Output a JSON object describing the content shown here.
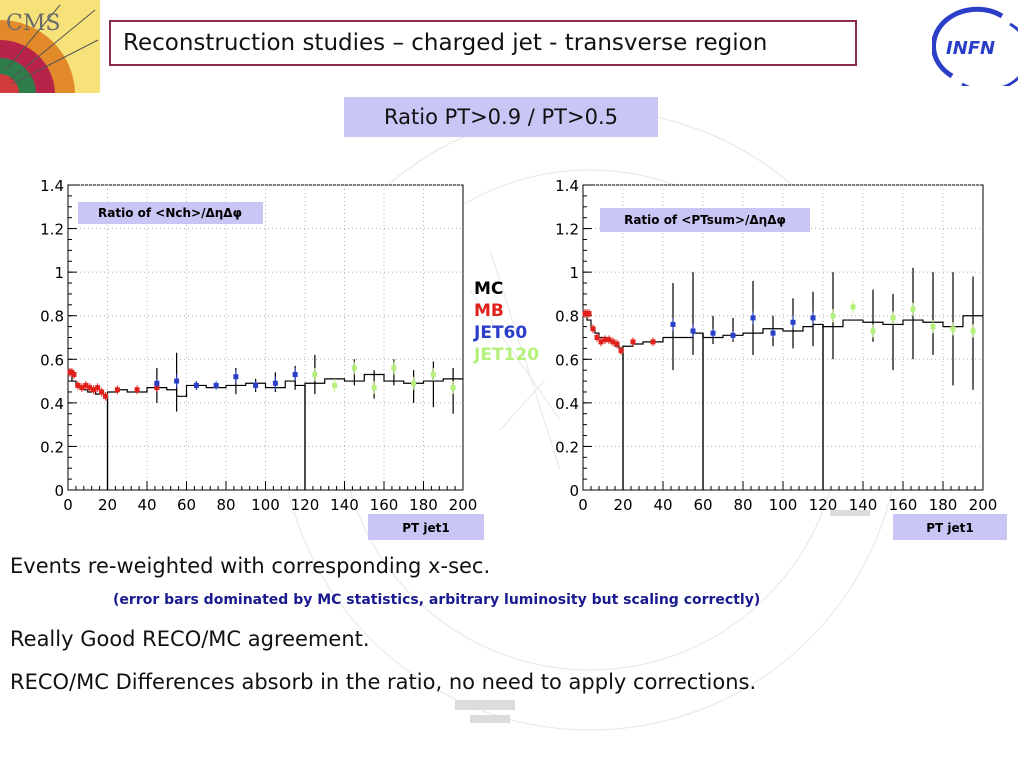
{
  "title": "Reconstruction studies – charged jet - transverse region",
  "subtitle": "Ratio PT>0.9 / PT>0.5",
  "logos": {
    "left": "CMS",
    "right": "INFN"
  },
  "legend": [
    {
      "label": "MC",
      "color": "#000000"
    },
    {
      "label": "MB",
      "color": "#e0201a"
    },
    {
      "label": "JET60",
      "color": "#2a3ec8"
    },
    {
      "label": "JET120",
      "color": "#b5f07a"
    }
  ],
  "bullets": {
    "line1": "Events re-weighted with corresponding x-sec.",
    "note": "(error bars dominated by MC statistics, arbitrary luminosity but scaling correctly)",
    "line2": "Really Good RECO/MC  agreement.",
    "line3": "RECO/MC Differences absorb in the ratio, no need to apply corrections."
  },
  "chart_data": [
    {
      "type": "scatter",
      "title": "Ratio of <Nch>/ΔηΔφ",
      "xlabel": "PT jet1",
      "ylabel": "",
      "xlim": [
        0,
        200
      ],
      "ylim": [
        0,
        1.4
      ],
      "xticks": [
        0,
        20,
        40,
        60,
        80,
        100,
        120,
        140,
        160,
        180,
        200
      ],
      "yticks": [
        0,
        0.2,
        0.4,
        0.6,
        0.8,
        1,
        1.2,
        1.4
      ],
      "mc_histogram": {
        "edges": [
          0,
          2,
          4,
          6,
          8,
          10,
          12,
          14,
          16,
          18,
          20,
          25,
          30,
          40,
          50,
          55,
          60,
          70,
          80,
          90,
          100,
          110,
          115,
          120,
          130,
          140,
          150,
          160,
          170,
          180,
          190,
          200
        ],
        "values": [
          0.53,
          0.5,
          0.48,
          0.47,
          0.46,
          0.45,
          0.46,
          0.44,
          0.45,
          0.43,
          0.45,
          0.46,
          0.45,
          0.47,
          0.46,
          0.43,
          0.48,
          0.47,
          0.48,
          0.49,
          0.47,
          0.5,
          0.48,
          0.49,
          0.51,
          0.5,
          0.53,
          0.5,
          0.49,
          0.5,
          0.51
        ],
        "color": "#000000"
      },
      "series": [
        {
          "name": "MB",
          "color": "#e0201a",
          "points": [
            [
              1,
              0.54,
              0.02
            ],
            [
              2,
              0.54,
              0.02
            ],
            [
              3,
              0.53,
              0.02
            ],
            [
              5,
              0.48,
              0.02
            ],
            [
              7,
              0.47,
              0.02
            ],
            [
              9,
              0.48,
              0.02
            ],
            [
              11,
              0.47,
              0.02
            ],
            [
              13,
              0.46,
              0.02
            ],
            [
              15,
              0.47,
              0.02
            ],
            [
              17,
              0.45,
              0.02
            ],
            [
              19,
              0.43,
              0.02
            ],
            [
              25,
              0.46,
              0.02
            ],
            [
              35,
              0.46,
              0.02
            ],
            [
              45,
              0.47,
              0.02
            ]
          ]
        },
        {
          "name": "JET60",
          "color": "#2a3ec8",
          "points": [
            [
              45,
              0.49,
              0.02
            ],
            [
              55,
              0.5,
              0.03
            ],
            [
              65,
              0.48,
              0.02
            ],
            [
              75,
              0.48,
              0.02
            ],
            [
              85,
              0.52,
              0.03
            ],
            [
              95,
              0.48,
              0.02
            ],
            [
              105,
              0.49,
              0.03
            ],
            [
              115,
              0.53,
              0.03
            ]
          ]
        },
        {
          "name": "JET120",
          "color": "#b5f07a",
          "points": [
            [
              125,
              0.53,
              0.03
            ],
            [
              135,
              0.48,
              0.03
            ],
            [
              145,
              0.56,
              0.03
            ],
            [
              155,
              0.47,
              0.03
            ],
            [
              165,
              0.56,
              0.03
            ],
            [
              175,
              0.49,
              0.03
            ],
            [
              185,
              0.53,
              0.03
            ],
            [
              195,
              0.47,
              0.03
            ]
          ]
        }
      ],
      "mc_error_bars": [
        [
          45,
          0.4,
          0.56
        ],
        [
          55,
          0.36,
          0.63
        ],
        [
          65,
          0.46,
          0.5
        ],
        [
          85,
          0.44,
          0.56
        ],
        [
          95,
          0.45,
          0.51
        ],
        [
          105,
          0.45,
          0.54
        ],
        [
          115,
          0.46,
          0.57
        ],
        [
          125,
          0.44,
          0.62
        ],
        [
          145,
          0.48,
          0.6
        ],
        [
          155,
          0.42,
          0.55
        ],
        [
          165,
          0.48,
          0.6
        ],
        [
          175,
          0.4,
          0.55
        ],
        [
          185,
          0.38,
          0.59
        ],
        [
          195,
          0.35,
          0.56
        ]
      ],
      "mc_spikes": [
        [
          20,
          0
        ],
        [
          60,
          0.44
        ],
        [
          120,
          0
        ]
      ]
    },
    {
      "type": "scatter",
      "title": "Ratio of <PTsum>/ΔηΔφ",
      "xlabel": "PT jet1",
      "ylabel": "",
      "xlim": [
        0,
        200
      ],
      "ylim": [
        0,
        1.4
      ],
      "xticks": [
        0,
        20,
        40,
        60,
        80,
        100,
        120,
        140,
        160,
        180,
        200
      ],
      "yticks": [
        0,
        0.2,
        0.4,
        0.6,
        0.8,
        1,
        1.2,
        1.4
      ],
      "mc_histogram": {
        "edges": [
          0,
          2,
          4,
          6,
          8,
          10,
          12,
          14,
          16,
          18,
          20,
          25,
          30,
          40,
          50,
          55,
          60,
          70,
          80,
          90,
          100,
          110,
          115,
          120,
          130,
          140,
          150,
          160,
          170,
          180,
          190,
          200
        ],
        "values": [
          0.82,
          0.78,
          0.74,
          0.72,
          0.7,
          0.7,
          0.69,
          0.68,
          0.66,
          0.65,
          0.66,
          0.67,
          0.68,
          0.7,
          0.7,
          0.72,
          0.7,
          0.71,
          0.72,
          0.74,
          0.73,
          0.75,
          0.76,
          0.75,
          0.78,
          0.77,
          0.76,
          0.78,
          0.77,
          0.75,
          0.8
        ],
        "color": "#000000"
      },
      "series": [
        {
          "name": "MB",
          "color": "#e0201a",
          "points": [
            [
              1,
              0.81,
              0.02
            ],
            [
              2,
              0.81,
              0.02
            ],
            [
              3,
              0.81,
              0.02
            ],
            [
              5,
              0.74,
              0.02
            ],
            [
              7,
              0.7,
              0.02
            ],
            [
              9,
              0.68,
              0.02
            ],
            [
              11,
              0.69,
              0.02
            ],
            [
              13,
              0.69,
              0.02
            ],
            [
              15,
              0.68,
              0.02
            ],
            [
              17,
              0.67,
              0.02
            ],
            [
              19,
              0.64,
              0.02
            ],
            [
              25,
              0.68,
              0.02
            ],
            [
              35,
              0.68,
              0.02
            ]
          ]
        },
        {
          "name": "JET60",
          "color": "#2a3ec8",
          "points": [
            [
              45,
              0.76,
              0.03
            ],
            [
              55,
              0.73,
              0.03
            ],
            [
              65,
              0.72,
              0.02
            ],
            [
              75,
              0.71,
              0.02
            ],
            [
              85,
              0.79,
              0.03
            ],
            [
              95,
              0.72,
              0.02
            ],
            [
              105,
              0.77,
              0.03
            ],
            [
              115,
              0.79,
              0.03
            ]
          ]
        },
        {
          "name": "JET120",
          "color": "#b5f07a",
          "points": [
            [
              125,
              0.8,
              0.03
            ],
            [
              135,
              0.84,
              0.03
            ],
            [
              145,
              0.73,
              0.03
            ],
            [
              155,
              0.79,
              0.03
            ],
            [
              165,
              0.83,
              0.03
            ],
            [
              175,
              0.75,
              0.03
            ],
            [
              185,
              0.74,
              0.03
            ],
            [
              195,
              0.73,
              0.03
            ]
          ]
        }
      ],
      "mc_error_bars": [
        [
          45,
          0.55,
          0.95
        ],
        [
          55,
          0.62,
          1.0
        ],
        [
          65,
          0.67,
          0.8
        ],
        [
          75,
          0.68,
          0.79
        ],
        [
          85,
          0.62,
          0.96
        ],
        [
          95,
          0.66,
          0.8
        ],
        [
          105,
          0.65,
          0.88
        ],
        [
          115,
          0.66,
          0.91
        ],
        [
          125,
          0.6,
          1.0
        ],
        [
          145,
          0.68,
          0.92
        ],
        [
          155,
          0.55,
          0.9
        ],
        [
          165,
          0.6,
          1.02
        ],
        [
          175,
          0.62,
          1.0
        ],
        [
          185,
          0.48,
          1.0
        ],
        [
          195,
          0.46,
          0.98
        ]
      ],
      "mc_spikes": [
        [
          20,
          0
        ],
        [
          60,
          0
        ],
        [
          120,
          0
        ]
      ]
    }
  ]
}
